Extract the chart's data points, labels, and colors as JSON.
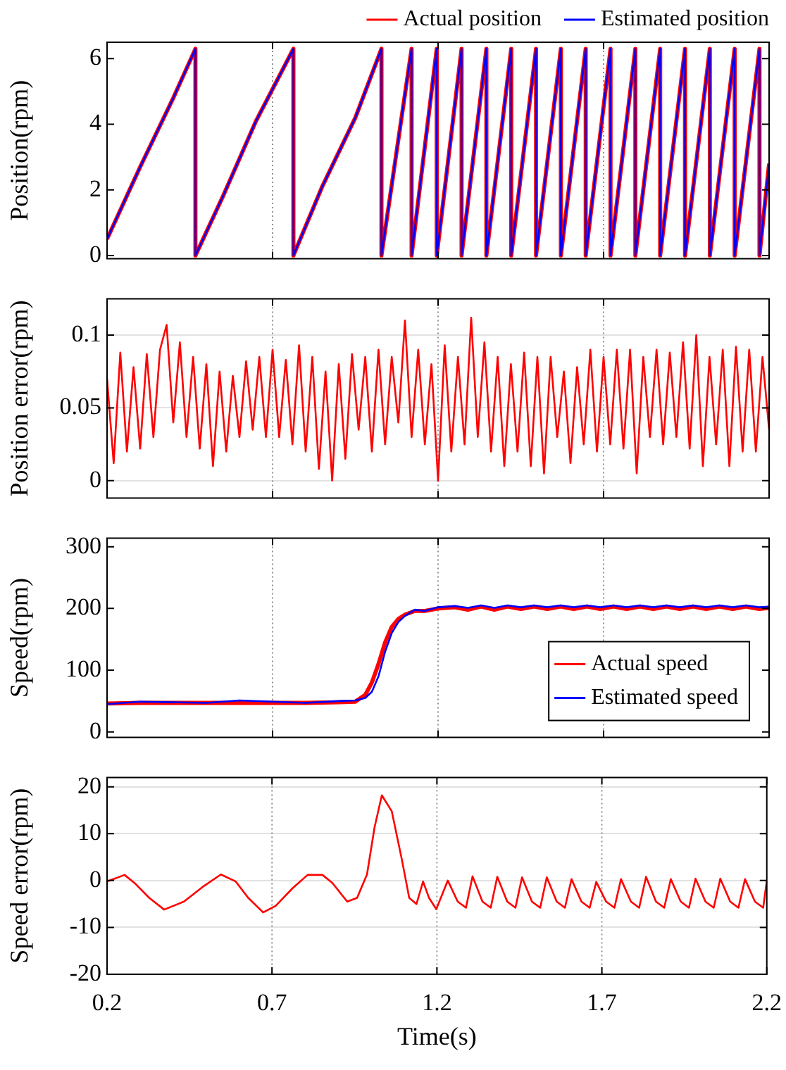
{
  "chart_data": [
    {
      "type": "line",
      "ylabel": "Position(rpm)",
      "xlim": [
        0.2,
        2.2
      ],
      "xticks": [
        0.2,
        0.7,
        1.2,
        1.7,
        2.2
      ],
      "ylim": [
        -0.1,
        6.5
      ],
      "yticks": [
        0,
        2,
        4,
        6
      ],
      "grid": "x",
      "legend": "top right",
      "tick_labels": "y",
      "x": [
        0.2,
        0.3,
        0.4,
        0.467,
        0.467,
        0.55,
        0.65,
        0.763,
        0.763,
        0.85,
        0.95,
        1.029,
        1.029,
        1.12,
        1.12,
        1.196,
        1.196,
        1.271,
        1.271,
        1.346,
        1.346,
        1.421,
        1.421,
        1.496,
        1.496,
        1.571,
        1.571,
        1.646,
        1.646,
        1.721,
        1.721,
        1.796,
        1.796,
        1.871,
        1.871,
        1.946,
        1.946,
        2.021,
        2.021,
        2.096,
        2.096,
        2.171,
        2.171,
        2.2
      ],
      "series": [
        {
          "name": "Actual position",
          "color": "#ff0000",
          "values": [
            0.5,
            2.7,
            4.8,
            6.3,
            0,
            1.8,
            4.1,
            6.3,
            0,
            2.1,
            4.2,
            6.3,
            0,
            6.3,
            0,
            6.3,
            0,
            6.3,
            0,
            6.3,
            0,
            6.3,
            0,
            6.3,
            0,
            6.3,
            0,
            6.3,
            0,
            6.3,
            0,
            6.3,
            0,
            6.3,
            0,
            6.3,
            0,
            6.3,
            0,
            6.3,
            0,
            6.3,
            0,
            2.8
          ]
        },
        {
          "name": "Estimated position",
          "color": "#0000ff",
          "values": [
            0.5,
            2.7,
            4.8,
            6.3,
            0,
            1.8,
            4.1,
            6.3,
            0,
            2.1,
            4.2,
            6.3,
            0,
            6.3,
            0,
            6.3,
            0,
            6.3,
            0,
            6.3,
            0,
            6.3,
            0,
            6.3,
            0,
            6.3,
            0,
            6.3,
            0,
            6.3,
            0,
            6.3,
            0,
            6.3,
            0,
            6.3,
            0,
            6.3,
            0,
            6.3,
            0,
            6.3,
            0,
            2.8
          ]
        }
      ]
    },
    {
      "type": "line",
      "ylabel": "Position error(rpm)",
      "xlim": [
        0.2,
        2.2
      ],
      "xticks": [
        0.2,
        0.7,
        1.2,
        1.7,
        2.2
      ],
      "ylim": [
        -0.012,
        0.125
      ],
      "yticks": [
        0,
        0.05,
        0.1
      ],
      "grid": true,
      "tick_labels": "y",
      "x": [
        0.2,
        0.22,
        0.24,
        0.26,
        0.28,
        0.3,
        0.32,
        0.34,
        0.36,
        0.38,
        0.4,
        0.42,
        0.44,
        0.46,
        0.48,
        0.5,
        0.52,
        0.54,
        0.56,
        0.58,
        0.6,
        0.62,
        0.64,
        0.66,
        0.68,
        0.7,
        0.72,
        0.74,
        0.76,
        0.78,
        0.8,
        0.82,
        0.84,
        0.86,
        0.88,
        0.9,
        0.92,
        0.94,
        0.96,
        0.98,
        1.0,
        1.02,
        1.04,
        1.06,
        1.08,
        1.1,
        1.12,
        1.14,
        1.16,
        1.18,
        1.2,
        1.22,
        1.24,
        1.26,
        1.28,
        1.3,
        1.32,
        1.34,
        1.36,
        1.38,
        1.4,
        1.42,
        1.44,
        1.46,
        1.48,
        1.5,
        1.52,
        1.54,
        1.56,
        1.58,
        1.6,
        1.62,
        1.64,
        1.66,
        1.68,
        1.7,
        1.72,
        1.74,
        1.76,
        1.78,
        1.8,
        1.82,
        1.84,
        1.86,
        1.88,
        1.9,
        1.92,
        1.94,
        1.96,
        1.98,
        2.0,
        2.02,
        2.04,
        2.06,
        2.08,
        2.1,
        2.12,
        2.14,
        2.16,
        2.18,
        2.2
      ],
      "series": [
        {
          "color": "#ff0000",
          "values": [
            0.07,
            0.012,
            0.088,
            0.02,
            0.078,
            0.022,
            0.087,
            0.03,
            0.09,
            0.107,
            0.04,
            0.095,
            0.03,
            0.085,
            0.022,
            0.08,
            0.01,
            0.075,
            0.02,
            0.072,
            0.03,
            0.082,
            0.035,
            0.085,
            0.03,
            0.09,
            0.03,
            0.083,
            0.025,
            0.093,
            0.02,
            0.085,
            0.008,
            0.075,
            0.0,
            0.08,
            0.015,
            0.087,
            0.035,
            0.085,
            0.02,
            0.09,
            0.025,
            0.085,
            0.04,
            0.11,
            0.03,
            0.09,
            0.025,
            0.08,
            0.0,
            0.093,
            0.02,
            0.085,
            0.025,
            0.112,
            0.03,
            0.095,
            0.02,
            0.085,
            0.01,
            0.08,
            0.02,
            0.088,
            0.01,
            0.085,
            0.005,
            0.085,
            0.03,
            0.075,
            0.012,
            0.078,
            0.025,
            0.09,
            0.02,
            0.085,
            0.025,
            0.09,
            0.022,
            0.09,
            0.005,
            0.085,
            0.03,
            0.09,
            0.025,
            0.088,
            0.03,
            0.095,
            0.022,
            0.1,
            0.01,
            0.085,
            0.025,
            0.09,
            0.01,
            0.092,
            0.02,
            0.09,
            0.02,
            0.085,
            0.035
          ]
        }
      ]
    },
    {
      "type": "line",
      "ylabel": "Speed(rpm)",
      "xlim": [
        0.2,
        2.2
      ],
      "xticks": [
        0.2,
        0.7,
        1.2,
        1.7,
        2.2
      ],
      "ylim": [
        -9,
        314
      ],
      "yticks": [
        0,
        100,
        200,
        300
      ],
      "grid": "x",
      "legend": "bottom right",
      "tick_labels": "y",
      "x": [
        0.2,
        0.3,
        0.4,
        0.5,
        0.6,
        0.7,
        0.8,
        0.9,
        0.95,
        0.98,
        1.0,
        1.02,
        1.04,
        1.06,
        1.08,
        1.1,
        1.13,
        1.16,
        1.2,
        1.25,
        1.29,
        1.33,
        1.37,
        1.41,
        1.45,
        1.49,
        1.53,
        1.57,
        1.61,
        1.65,
        1.69,
        1.73,
        1.77,
        1.81,
        1.85,
        1.89,
        1.93,
        1.97,
        2.01,
        2.05,
        2.09,
        2.13,
        2.17,
        2.2
      ],
      "series": [
        {
          "name": "Actual speed",
          "color": "#ff0000",
          "values": [
            46,
            47,
            47,
            47,
            47,
            47,
            47,
            48,
            49,
            60,
            80,
            110,
            145,
            170,
            183,
            190,
            196,
            196,
            200,
            202,
            198,
            203,
            198,
            203,
            199,
            203,
            199,
            203,
            199,
            203,
            199,
            203,
            199,
            203,
            199,
            203,
            199,
            203,
            199,
            203,
            199,
            203,
            199,
            201
          ]
        },
        {
          "name": "Estimated speed",
          "color": "#0000ff",
          "values": [
            45,
            49,
            48,
            47,
            51,
            49,
            47,
            50,
            51,
            55,
            65,
            90,
            130,
            160,
            178,
            188,
            198,
            196,
            202,
            204,
            201,
            205,
            201,
            205,
            202,
            205,
            202,
            205,
            202,
            205,
            202,
            205,
            202,
            205,
            202,
            205,
            202,
            205,
            202,
            205,
            202,
            205,
            202,
            203
          ]
        }
      ]
    },
    {
      "type": "line",
      "ylabel": "Speed error(rpm)",
      "xlabel": "Time(s)",
      "xlim": [
        0.2,
        2.2
      ],
      "xticks": [
        0.2,
        0.7,
        1.2,
        1.7,
        2.2
      ],
      "ylim": [
        -20,
        22
      ],
      "yticks": [
        -20,
        -10,
        0,
        10,
        20
      ],
      "grid": true,
      "x": [
        0.2,
        0.253,
        0.283,
        0.328,
        0.373,
        0.433,
        0.493,
        0.545,
        0.59,
        0.628,
        0.673,
        0.711,
        0.763,
        0.808,
        0.853,
        0.883,
        0.928,
        0.958,
        0.988,
        1.011,
        1.033,
        1.063,
        1.093,
        1.116,
        1.138,
        1.158,
        1.176,
        1.198,
        1.233,
        1.263,
        1.288,
        1.308,
        1.338,
        1.363,
        1.383,
        1.413,
        1.438,
        1.458,
        1.488,
        1.513,
        1.533,
        1.563,
        1.588,
        1.608,
        1.638,
        1.663,
        1.683,
        1.713,
        1.738,
        1.758,
        1.788,
        1.813,
        1.834,
        1.864,
        1.889,
        1.909,
        1.939,
        1.964,
        1.984,
        2.014,
        2.039,
        2.059,
        2.089,
        2.114,
        2.134,
        2.164,
        2.189,
        2.2
      ],
      "series": [
        {
          "color": "#ff0000",
          "values": [
            -0.2,
            1.2,
            -0.5,
            -3.7,
            -6.2,
            -4.5,
            -1.2,
            1.3,
            -0.2,
            -3.7,
            -6.8,
            -5.4,
            -1.6,
            1.2,
            1.2,
            -0.5,
            -4.5,
            -3.7,
            1.3,
            11.4,
            18.2,
            14.8,
            4.7,
            -3.7,
            -5,
            -0.2,
            -3.7,
            -6.1,
            0,
            -4.5,
            -5.8,
            0.9,
            -4.5,
            -5.8,
            0.8,
            -4.5,
            -5.8,
            0.7,
            -4.5,
            -5.8,
            0.7,
            -4.5,
            -5.8,
            0.3,
            -4.5,
            -5.8,
            -0.3,
            -4.5,
            -5.8,
            0.3,
            -4.5,
            -5.8,
            0.8,
            -4.5,
            -5.8,
            0.3,
            -4.5,
            -5.8,
            0.4,
            -4.5,
            -5.8,
            0.4,
            -4.5,
            -5.8,
            0.3,
            -4.5,
            -5.8,
            0
          ]
        }
      ]
    }
  ]
}
